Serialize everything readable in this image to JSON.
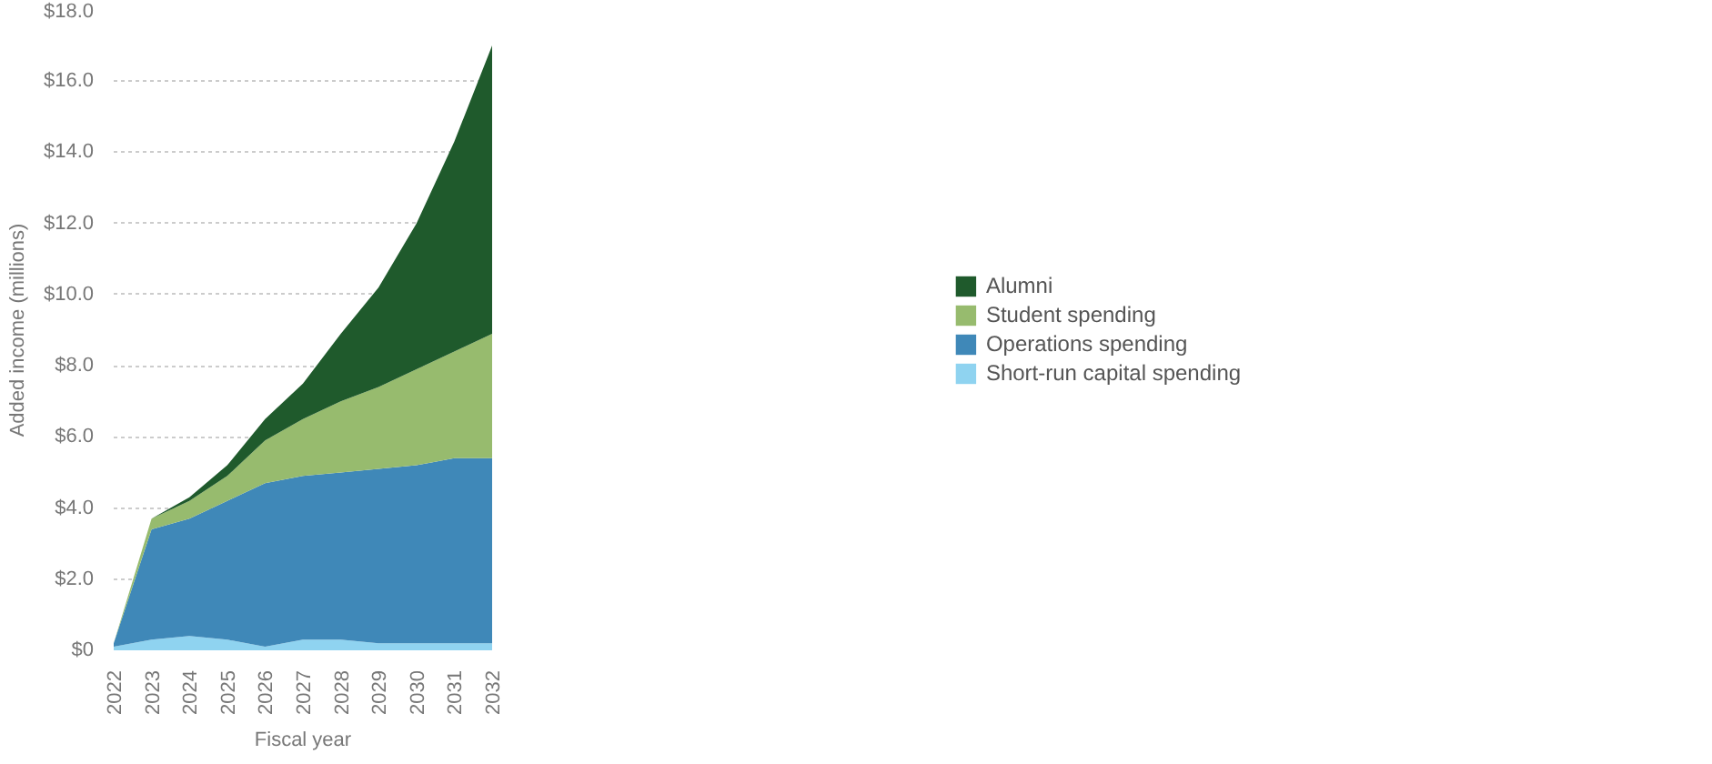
{
  "chart_data": {
    "type": "area",
    "stacked": true,
    "xlabel": "Fiscal year",
    "ylabel": "Added income (millions)",
    "x": [
      2022,
      2023,
      2024,
      2025,
      2026,
      2027,
      2028,
      2029,
      2030,
      2031,
      2032
    ],
    "series": [
      {
        "name": "Short-run capital spending",
        "color": "#8fd3f0",
        "values": [
          0.1,
          0.3,
          0.4,
          0.3,
          0.1,
          0.3,
          0.3,
          0.2,
          0.2,
          0.2,
          0.2
        ]
      },
      {
        "name": "Operations spending",
        "color": "#3f88b8",
        "values": [
          0.1,
          3.1,
          3.3,
          3.9,
          4.6,
          4.6,
          4.7,
          4.9,
          5.0,
          5.2,
          5.2
        ]
      },
      {
        "name": "Student spending",
        "color": "#97bb6e",
        "values": [
          0.0,
          0.3,
          0.5,
          0.7,
          1.2,
          1.6,
          2.0,
          2.3,
          2.7,
          3.0,
          3.5
        ]
      },
      {
        "name": "Alumni",
        "color": "#1f5a2c",
        "values": [
          0.0,
          0.0,
          0.1,
          0.3,
          0.6,
          1.0,
          1.9,
          2.8,
          4.1,
          5.9,
          8.1
        ]
      }
    ],
    "xlim": [
      2022,
      2032
    ],
    "xticks": [
      2022,
      2023,
      2024,
      2025,
      2026,
      2027,
      2028,
      2029,
      2030,
      2031,
      2032
    ],
    "ylim": [
      0,
      18
    ],
    "yticks": [
      {
        "value": 0,
        "label": "$0"
      },
      {
        "value": 2,
        "label": "$2.0"
      },
      {
        "value": 4,
        "label": "$4.0"
      },
      {
        "value": 6,
        "label": "$6.0"
      },
      {
        "value": 8,
        "label": "$8.0"
      },
      {
        "value": 10,
        "label": "$10.0"
      },
      {
        "value": 12,
        "label": "$12.0"
      },
      {
        "value": 14,
        "label": "$14.0"
      },
      {
        "value": 16,
        "label": "$16.0"
      },
      {
        "value": 18,
        "label": "$18.0"
      }
    ],
    "grid": "y",
    "legend": "right"
  }
}
